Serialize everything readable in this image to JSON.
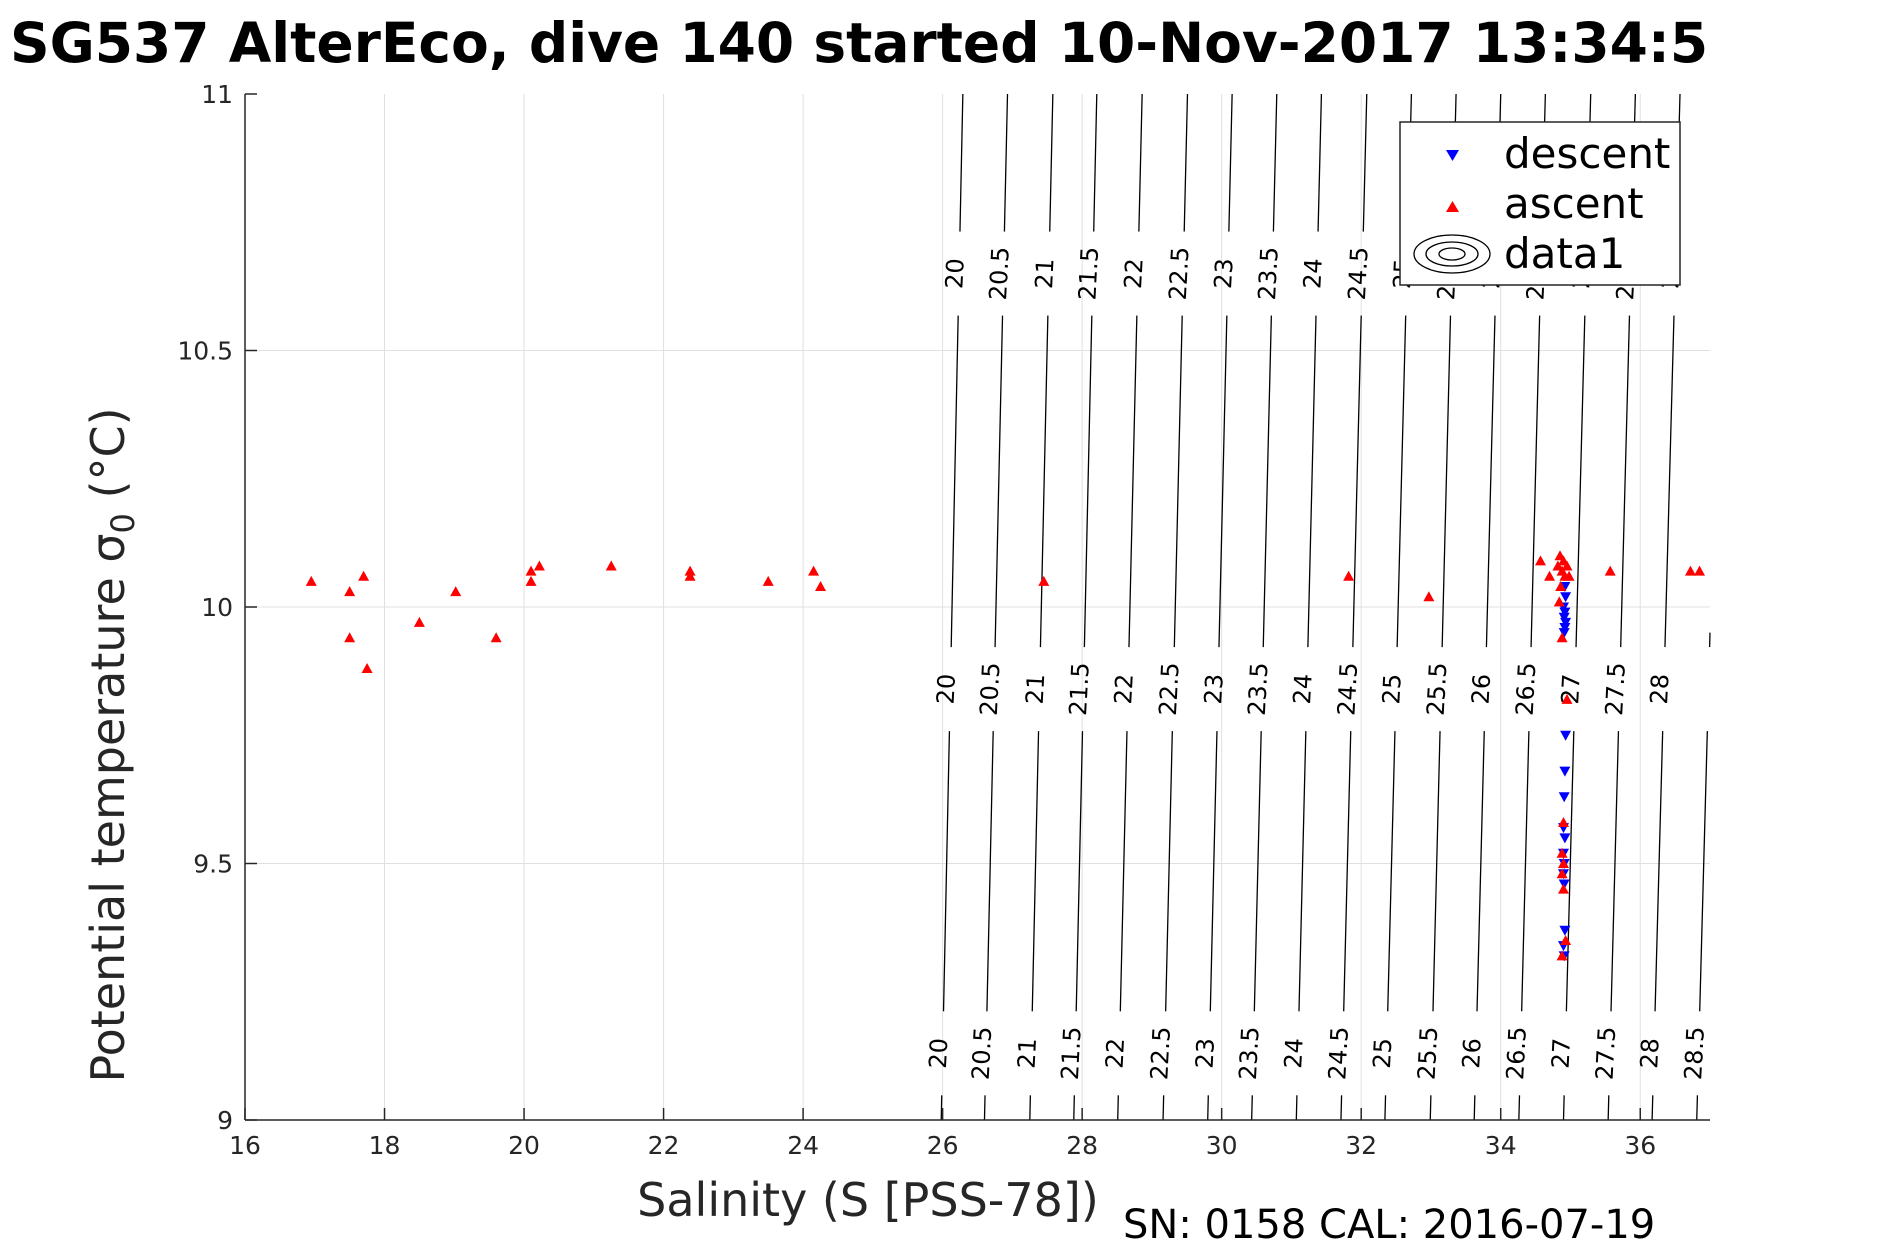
{
  "chart_data": {
    "type": "scatter",
    "title": "SG537 AlterEco, dive 140 started 10-Nov-2017 13:34:5",
    "xlabel": "Salinity (S [PSS-78])",
    "ylabel_main": "Potential temperature σ",
    "ylabel_sub": "0",
    "ylabel_unit": " (°C)",
    "footer": "SN: 0158  CAL: 2016-07-19",
    "xlim": [
      16,
      37
    ],
    "ylim": [
      9,
      11
    ],
    "xticks": [
      16,
      18,
      20,
      22,
      24,
      26,
      28,
      30,
      32,
      34,
      36
    ],
    "yticks": [
      9,
      9.5,
      10,
      10.5,
      11
    ],
    "ytick_labels": [
      "9",
      "9.5",
      "10",
      "10.5",
      "11"
    ],
    "grid": true,
    "legend_position": "top-right",
    "legend": [
      "descent",
      "ascent",
      "data1"
    ],
    "colors": {
      "descent": "#0000ff",
      "ascent": "#ff0000",
      "contour": "#000000",
      "grid": "#e0e0e0",
      "axis": "#262626"
    },
    "isopycnal_labels": [
      "20",
      "20.5",
      "21",
      "21.5",
      "22",
      "22.5",
      "23",
      "23.5",
      "24",
      "24.5",
      "25",
      "25.5",
      "26",
      "26.5",
      "27",
      "27.5",
      "28",
      "28.5"
    ],
    "isopycnals": [
      {
        "label": "20",
        "s_bottom": 25.98,
        "s_top": 26.29
      },
      {
        "label": "20.5",
        "s_bottom": 26.6,
        "s_top": 26.93
      },
      {
        "label": "21",
        "s_bottom": 27.25,
        "s_top": 27.58
      },
      {
        "label": "21.5",
        "s_bottom": 27.88,
        "s_top": 28.21
      },
      {
        "label": "22",
        "s_bottom": 28.51,
        "s_top": 28.86
      },
      {
        "label": "22.5",
        "s_bottom": 29.16,
        "s_top": 29.51
      },
      {
        "label": "23",
        "s_bottom": 29.8,
        "s_top": 30.15
      },
      {
        "label": "23.5",
        "s_bottom": 30.43,
        "s_top": 30.79
      },
      {
        "label": "24",
        "s_bottom": 31.07,
        "s_top": 31.43
      },
      {
        "label": "24.5",
        "s_bottom": 31.71,
        "s_top": 32.08
      },
      {
        "label": "25",
        "s_bottom": 32.34,
        "s_top": 32.72
      },
      {
        "label": "25.5",
        "s_bottom": 32.99,
        "s_top": 33.36
      },
      {
        "label": "26",
        "s_bottom": 33.62,
        "s_top": 34.0
      },
      {
        "label": "26.5",
        "s_bottom": 34.26,
        "s_top": 34.64
      },
      {
        "label": "27",
        "s_bottom": 34.9,
        "s_top": 35.29
      },
      {
        "label": "27.5",
        "s_bottom": 35.54,
        "s_top": 35.93
      },
      {
        "label": "28",
        "s_bottom": 36.17,
        "s_top": 36.57
      },
      {
        "label": "28.5",
        "s_bottom": 36.81,
        "s_top": 37.21
      }
    ],
    "series": [
      {
        "name": "descent",
        "marker": "triangle-down",
        "points": [
          [
            34.92,
            10.04
          ],
          [
            34.93,
            10.02
          ],
          [
            34.9,
            10.0
          ],
          [
            34.92,
            9.99
          ],
          [
            34.91,
            9.98
          ],
          [
            34.93,
            9.97
          ],
          [
            34.92,
            9.96
          ],
          [
            34.91,
            9.95
          ],
          [
            34.93,
            9.75
          ],
          [
            34.92,
            9.68
          ],
          [
            34.91,
            9.63
          ],
          [
            34.9,
            9.57
          ],
          [
            34.92,
            9.55
          ],
          [
            34.9,
            9.52
          ],
          [
            34.91,
            9.5
          ],
          [
            34.9,
            9.48
          ],
          [
            34.91,
            9.46
          ],
          [
            34.92,
            9.37
          ],
          [
            34.9,
            9.34
          ],
          [
            34.91,
            9.32
          ]
        ]
      },
      {
        "name": "ascent",
        "marker": "triangle-up",
        "points": [
          [
            16.95,
            10.05
          ],
          [
            17.5,
            10.03
          ],
          [
            17.5,
            9.94
          ],
          [
            17.7,
            10.06
          ],
          [
            17.75,
            9.88
          ],
          [
            18.5,
            9.97
          ],
          [
            19.02,
            10.03
          ],
          [
            19.6,
            9.94
          ],
          [
            20.1,
            10.05
          ],
          [
            20.1,
            10.07
          ],
          [
            20.22,
            10.08
          ],
          [
            21.25,
            10.08
          ],
          [
            22.38,
            10.06
          ],
          [
            22.38,
            10.07
          ],
          [
            23.5,
            10.05
          ],
          [
            24.15,
            10.07
          ],
          [
            24.25,
            10.04
          ],
          [
            27.45,
            10.05
          ],
          [
            31.82,
            10.06
          ],
          [
            32.97,
            10.02
          ],
          [
            34.57,
            10.09
          ],
          [
            34.7,
            10.06
          ],
          [
            34.82,
            10.08
          ],
          [
            34.85,
            10.1
          ],
          [
            34.88,
            10.07
          ],
          [
            34.9,
            10.09
          ],
          [
            34.92,
            10.06
          ],
          [
            34.95,
            10.08
          ],
          [
            34.98,
            10.06
          ],
          [
            34.86,
            10.04
          ],
          [
            34.84,
            10.01
          ],
          [
            34.88,
            9.94
          ],
          [
            34.95,
            9.82
          ],
          [
            34.9,
            9.58
          ],
          [
            34.88,
            9.52
          ],
          [
            34.9,
            9.5
          ],
          [
            34.88,
            9.48
          ],
          [
            34.9,
            9.45
          ],
          [
            34.93,
            9.35
          ],
          [
            34.88,
            9.32
          ],
          [
            35.57,
            10.07
          ],
          [
            36.72,
            10.07
          ],
          [
            36.85,
            10.07
          ]
        ]
      }
    ]
  }
}
